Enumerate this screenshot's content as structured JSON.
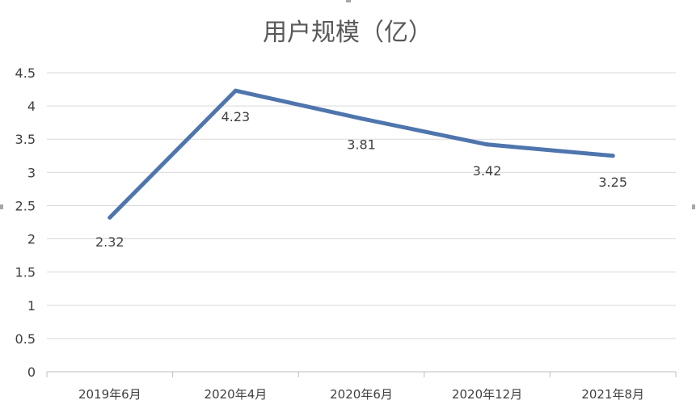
{
  "chart_data": {
    "type": "line",
    "title": "用户规模（亿）",
    "categories": [
      "2019年6月",
      "2020年4月",
      "2020年6月",
      "2020年12月",
      "2021年8月"
    ],
    "series": [
      {
        "values": [
          2.32,
          4.23,
          3.81,
          3.42,
          3.25
        ],
        "labels": [
          "2.32",
          "4.23",
          "3.81",
          "3.42",
          "3.25"
        ]
      }
    ],
    "yticks": [
      "0",
      "0.5",
      "1",
      "1.5",
      "2",
      "2.5",
      "3",
      "3.5",
      "4",
      "4.5"
    ],
    "ylim": [
      0,
      4.5
    ],
    "grid": true,
    "legend": "none",
    "line_color": "#4f75ad"
  }
}
